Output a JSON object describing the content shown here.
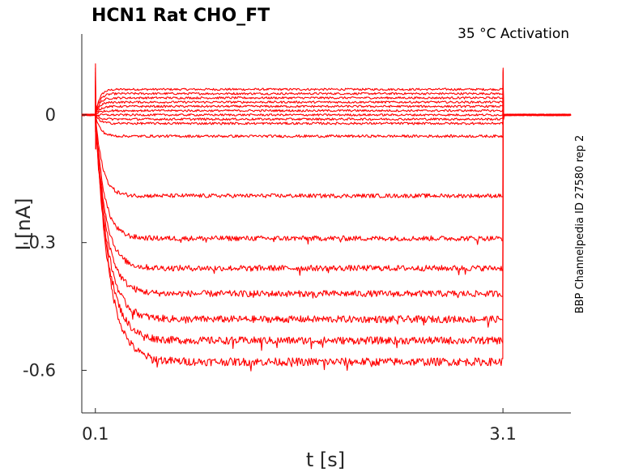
{
  "chart_data": {
    "type": "line",
    "title": "HCN1  Rat  CHO_FT",
    "annotation": "35 °C  Activation",
    "side_label": "BBP Channelpedia ID 27580 rep 2",
    "xlabel": "t [s]",
    "ylabel": "I [nA]",
    "xlim": [
      0.0,
      3.6
    ],
    "ylim": [
      -0.7,
      0.19
    ],
    "x_ticks": [
      0.1,
      3.1
    ],
    "x_tick_labels": [
      "0.1",
      "3.1"
    ],
    "y_ticks": [
      0,
      -0.3,
      -0.6
    ],
    "y_tick_labels": [
      "0",
      "-0.3",
      "-0.6"
    ],
    "grid": false,
    "color": "#ff0000",
    "pulse_start": 0.1,
    "pulse_end": 3.1,
    "series": [
      {
        "steady": 0.06
      },
      {
        "steady": 0.05
      },
      {
        "steady": 0.04
      },
      {
        "steady": 0.03
      },
      {
        "steady": 0.02
      },
      {
        "steady": 0.01
      },
      {
        "steady": 0.0
      },
      {
        "steady": -0.01
      },
      {
        "steady": -0.02
      },
      {
        "steady": -0.05
      },
      {
        "steady": -0.19
      },
      {
        "steady": -0.29
      },
      {
        "steady": -0.36
      },
      {
        "steady": -0.42
      },
      {
        "steady": -0.48
      },
      {
        "steady": -0.53
      },
      {
        "steady": -0.58
      }
    ]
  }
}
